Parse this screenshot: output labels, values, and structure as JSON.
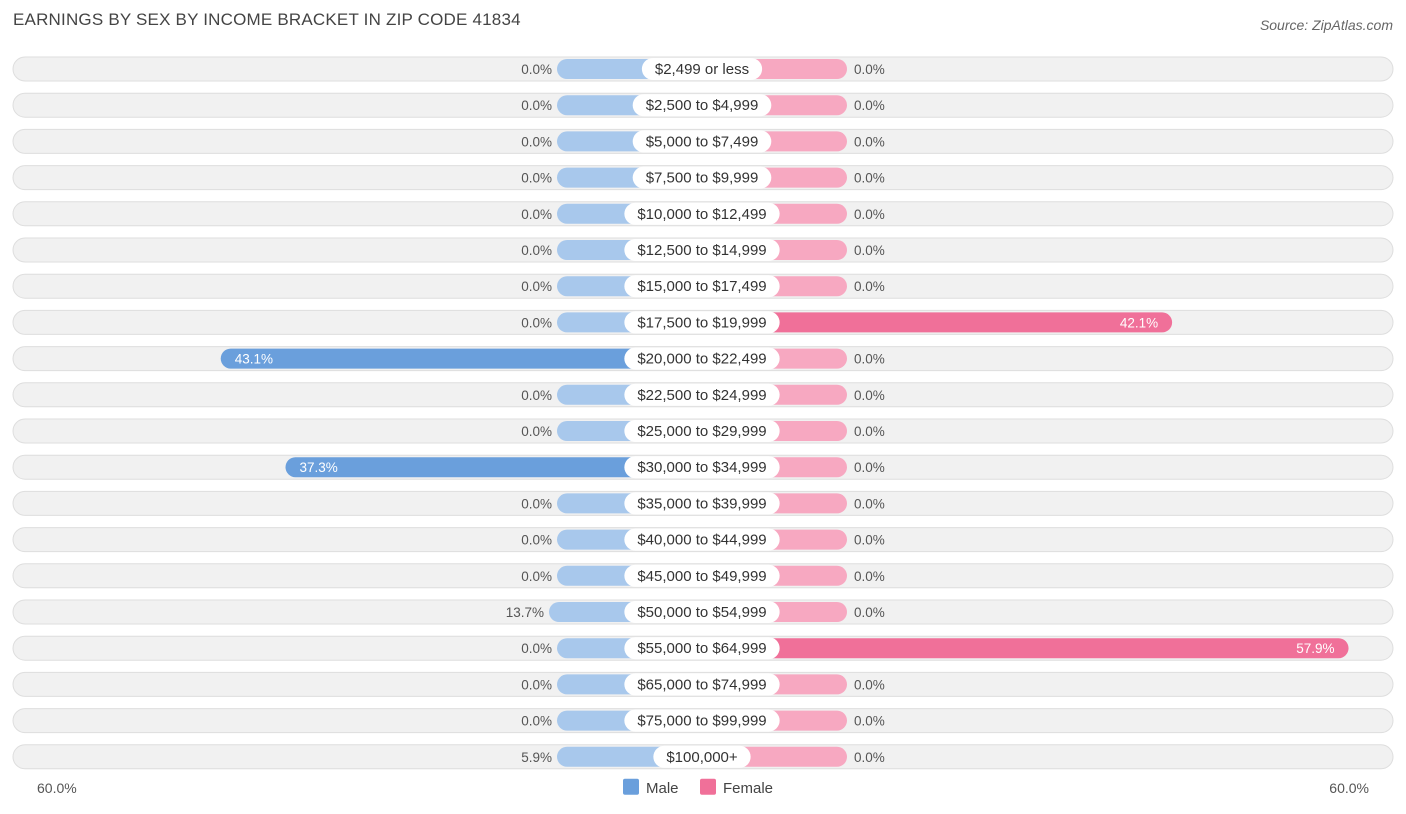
{
  "header": {
    "title": "EARNINGS BY SEX BY INCOME BRACKET IN ZIP CODE 41834",
    "source": "Source: ZipAtlas.com"
  },
  "colors": {
    "male_bar": "#a8c8ec",
    "male_bar_strong": "#6a9fdc",
    "female_bar": "#f7a8c1",
    "female_bar_strong": "#f07099",
    "row_bg": "#f1f1f1",
    "row_border": "#dedede"
  },
  "chart_data": {
    "type": "bar",
    "orientation": "horizontal-diverging",
    "title": "EARNINGS BY SEX BY INCOME BRACKET IN ZIP CODE 41834",
    "categories": [
      "$2,499 or less",
      "$2,500 to $4,999",
      "$5,000 to $7,499",
      "$7,500 to $9,999",
      "$10,000 to $12,499",
      "$12,500 to $14,999",
      "$15,000 to $17,499",
      "$17,500 to $19,999",
      "$20,000 to $22,499",
      "$22,500 to $24,999",
      "$25,000 to $29,999",
      "$30,000 to $34,999",
      "$35,000 to $39,999",
      "$40,000 to $44,999",
      "$45,000 to $49,999",
      "$50,000 to $54,999",
      "$55,000 to $64,999",
      "$65,000 to $74,999",
      "$75,000 to $99,999",
      "$100,000+"
    ],
    "series": [
      {
        "name": "Male",
        "values": [
          0.0,
          0.0,
          0.0,
          0.0,
          0.0,
          0.0,
          0.0,
          0.0,
          43.1,
          0.0,
          0.0,
          37.3,
          0.0,
          0.0,
          0.0,
          13.7,
          0.0,
          0.0,
          0.0,
          5.9
        ],
        "labels": [
          "0.0%",
          "0.0%",
          "0.0%",
          "0.0%",
          "0.0%",
          "0.0%",
          "0.0%",
          "0.0%",
          "43.1%",
          "0.0%",
          "0.0%",
          "37.3%",
          "0.0%",
          "0.0%",
          "0.0%",
          "13.7%",
          "0.0%",
          "0.0%",
          "0.0%",
          "5.9%"
        ]
      },
      {
        "name": "Female",
        "values": [
          0.0,
          0.0,
          0.0,
          0.0,
          0.0,
          0.0,
          0.0,
          42.1,
          0.0,
          0.0,
          0.0,
          0.0,
          0.0,
          0.0,
          0.0,
          0.0,
          57.9,
          0.0,
          0.0,
          0.0
        ],
        "labels": [
          "0.0%",
          "0.0%",
          "0.0%",
          "0.0%",
          "0.0%",
          "0.0%",
          "0.0%",
          "42.1%",
          "0.0%",
          "0.0%",
          "0.0%",
          "0.0%",
          "0.0%",
          "0.0%",
          "0.0%",
          "0.0%",
          "57.9%",
          "0.0%",
          "0.0%",
          "0.0%"
        ]
      }
    ],
    "axis_max": 60.0,
    "axis_left_label": "60.0%",
    "axis_right_label": "60.0%",
    "legend": [
      "Male",
      "Female"
    ],
    "legend_position": "bottom-center"
  }
}
